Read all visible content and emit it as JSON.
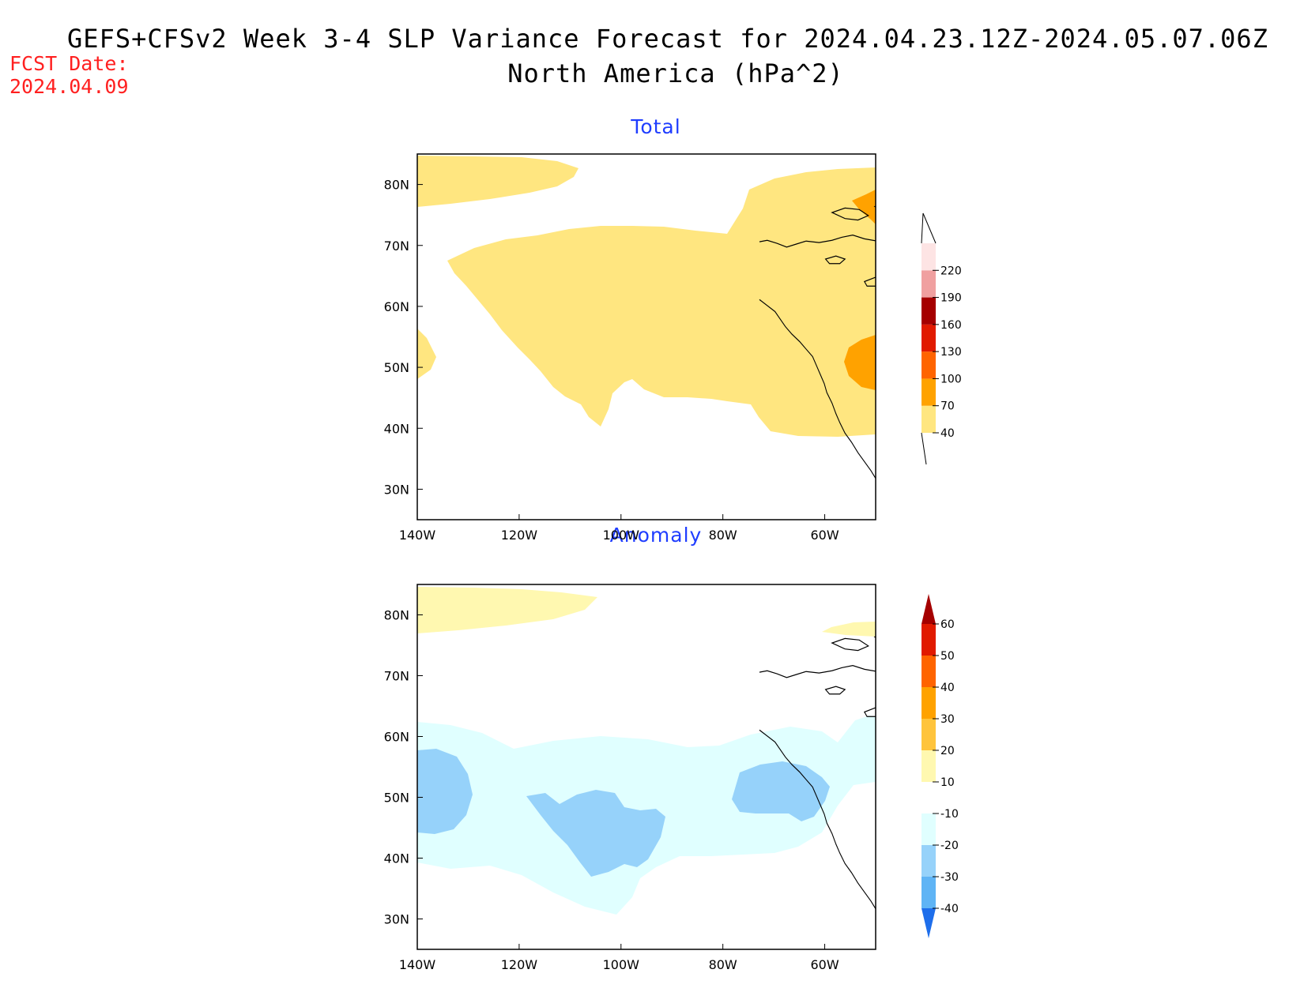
{
  "title": {
    "line1": "GEFS+CFSv2 Week 3-4 SLP Variance Forecast for 2024.04.23.12Z-2024.05.07.06Z",
    "line2": "North America (hPa^2)"
  },
  "forecast_date": {
    "label": "FCST Date:",
    "value": "2024.04.09"
  },
  "axes": {
    "lat_ticks": [
      "80N",
      "70N",
      "60N",
      "50N",
      "40N",
      "30N"
    ],
    "lat_values": [
      80,
      70,
      60,
      50,
      40,
      30
    ],
    "lon_ticks": [
      "140W",
      "120W",
      "100W",
      "80W",
      "60W"
    ],
    "lon_values": [
      -140,
      -120,
      -100,
      -80,
      -60
    ],
    "lat_range": [
      25,
      85
    ],
    "lon_range": [
      -140,
      -50
    ]
  },
  "panels": [
    {
      "id": "total",
      "title": "Total",
      "colorbar": {
        "levels": [
          "40",
          "70",
          "100",
          "130",
          "160",
          "190",
          "220"
        ],
        "colors": [
          "#ffe680",
          "#ffa200",
          "#ff6400",
          "#e11a00",
          "#a50000",
          "#f0a0a0",
          "#fde4e4"
        ]
      }
    },
    {
      "id": "anomaly",
      "title": "Anomaly",
      "colorbar": {
        "levels": [
          "60",
          "50",
          "40",
          "30",
          "20",
          "10",
          "-10",
          "-20",
          "-30",
          "-40"
        ],
        "colors": [
          "#a50000",
          "#e11a00",
          "#ff6400",
          "#ffa200",
          "#ffc43c",
          "#fff8b0",
          "#ffffff",
          "#e0ffff",
          "#96d2fa",
          "#5fb4f5",
          "#1e6eeb"
        ]
      }
    }
  ]
}
